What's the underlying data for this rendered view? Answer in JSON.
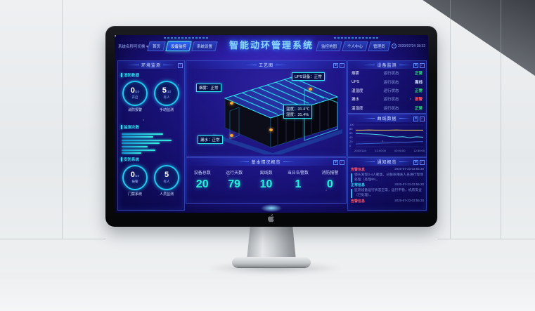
{
  "header": {
    "system_switcher": "系统名称可切换 ▾",
    "tabs_left": [
      {
        "label": "首页"
      },
      {
        "label": "设备监控"
      },
      {
        "label": "系统设置"
      }
    ],
    "title": "智能动环管理系统",
    "tabs_right": [
      {
        "label": "监控地图"
      },
      {
        "label": "个人中心"
      },
      {
        "label": "管理员"
      }
    ],
    "datetime": "2020/07/24 18:32"
  },
  "left_panel": {
    "title": "环境监测",
    "fire": {
      "title": "消防数据",
      "gauges": [
        {
          "value": "0",
          "total": "/10",
          "sub": "开启",
          "label": "消防报警"
        },
        {
          "value": "5",
          "total": "/10",
          "sub": "有人",
          "label": "手动监测"
        }
      ]
    },
    "counts": {
      "title": "监测次数"
    },
    "security": {
      "title": "安防系统",
      "gauges": [
        {
          "value": "0",
          "total": "/10",
          "sub": "报警",
          "label": "门禁系统"
        },
        {
          "value": "5",
          "total": "",
          "sub": "有人",
          "label": "人员监测"
        }
      ]
    }
  },
  "center": {
    "panel_title": "工艺图",
    "callouts": {
      "smoke": "烟雾：正常",
      "ups": "UPS设备：正常",
      "temp": "温度：31.4℃",
      "humidity": "湿度：31.4%",
      "leak": "漏水：正常"
    },
    "overview": {
      "title": "基本情况概览",
      "stats": [
        {
          "label": "设备总数",
          "value": "20"
        },
        {
          "label": "运行天数",
          "value": "79"
        },
        {
          "label": "离线数",
          "value": "10"
        },
        {
          "label": "当日告警数",
          "value": "1"
        },
        {
          "label": "消防报警",
          "value": "0"
        }
      ]
    }
  },
  "right": {
    "devices_panel": {
      "title": "设备监测",
      "rows": [
        {
          "name": "烟雾",
          "state": "运行状态",
          "status": "正常",
          "color": "green"
        },
        {
          "name": "UPS",
          "state": "运行状态",
          "status": "离线",
          "color": "pale"
        },
        {
          "name": "温湿度",
          "state": "运行状态",
          "status": "正常",
          "color": "green"
        },
        {
          "name": "漏水",
          "state": "运行状态",
          "status": "报警",
          "color": "red"
        },
        {
          "name": "温湿度",
          "state": "运行状态",
          "status": "正常",
          "color": "green"
        }
      ]
    },
    "curve_panel": {
      "title": "曲线数据"
    },
    "alerts_panel": {
      "title": "通知概览",
      "items": [
        {
          "tag": "告警信息",
          "color": "red",
          "time": "2020-07-23 03:55:30",
          "desc": "镜头发现3-4人聚集，已联系相关人员进行现场处理（处理中）。"
        },
        {
          "tag": "正常信息",
          "color": "cyan",
          "time": "2020-07-23 03:55:30",
          "desc": "监测设备运行状态正常，运行平稳，机房安全（已处理）。"
        },
        {
          "tag": "告警信息",
          "color": "red",
          "time": "2020-07-23 03:55:30",
          "desc": ""
        }
      ]
    }
  },
  "colors": {
    "green": "#2fe57d",
    "red": "#ff5060",
    "cyan": "#29dff0",
    "pale": "#ccd8ff",
    "accent_cyan": "#2ce0f0",
    "stat_teal": "#23f2dc",
    "callout_orange": "#ffa726"
  },
  "chart_data": [
    {
      "type": "bar",
      "orientation": "horizontal",
      "title": "监测次数",
      "categories": [
        "1",
        "2",
        "3",
        "4",
        "5",
        "6",
        "7"
      ],
      "values": [
        76,
        58,
        92,
        70,
        48,
        62,
        36
      ],
      "xlim": [
        0,
        100
      ]
    },
    {
      "type": "line",
      "title": "曲线数据",
      "x_labels": [
        "2020/11/4",
        "12:00:00",
        "03:00:00",
        "12:30:00"
      ],
      "y_ticks": [
        0,
        20,
        40,
        60,
        80,
        100
      ],
      "ylim": [
        0,
        100
      ],
      "legend_position": "none",
      "grid": true,
      "series": [
        {
          "name": "上限值",
          "color": "#e7c34a",
          "values": [
            78,
            78,
            79,
            78,
            78,
            78,
            79,
            78,
            78,
            78,
            78
          ]
        },
        {
          "name": "温度",
          "color": "#49d6e8",
          "values": [
            62,
            60,
            59,
            57,
            54,
            47,
            44,
            46,
            41,
            45,
            43
          ]
        },
        {
          "name": "湿度",
          "color": "#3b5fd0",
          "values": [
            10,
            11,
            12,
            13,
            14,
            15,
            16,
            18,
            19,
            21,
            22
          ]
        }
      ]
    }
  ]
}
